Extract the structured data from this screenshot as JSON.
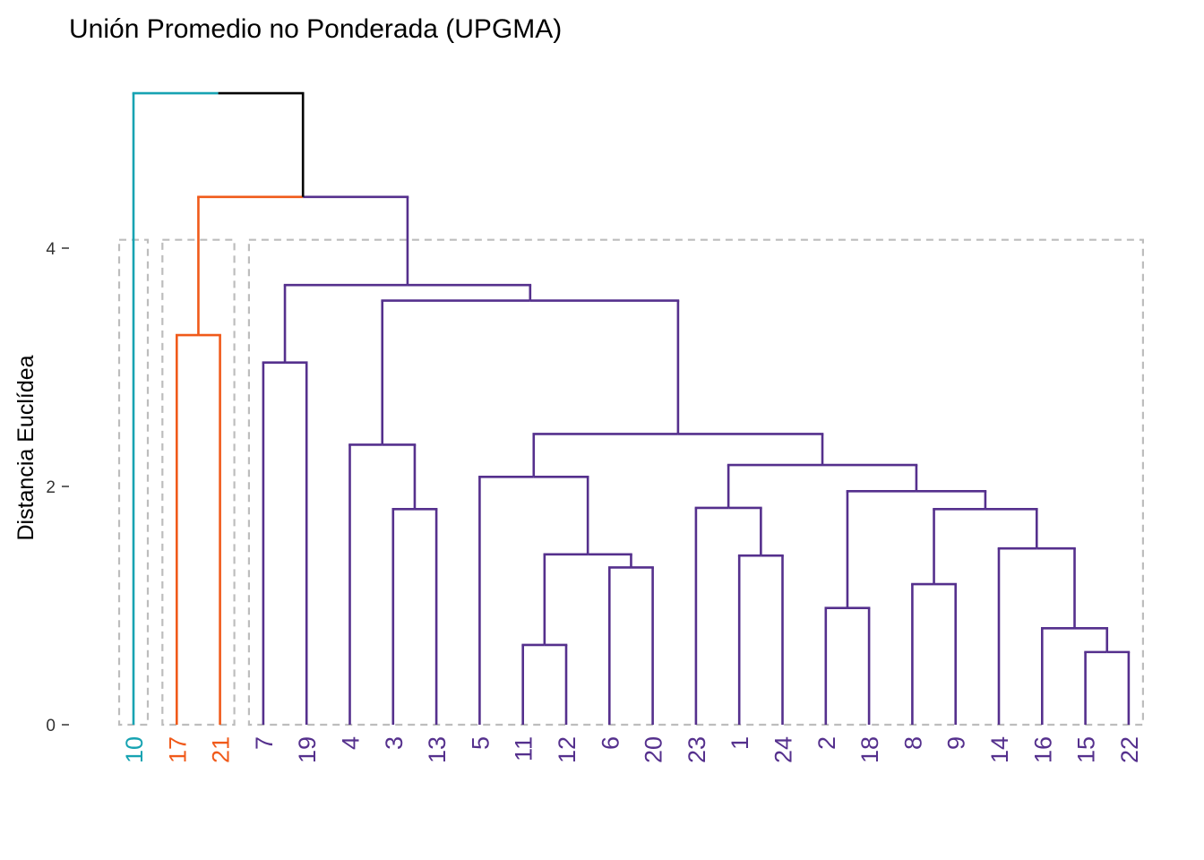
{
  "chart_data": {
    "type": "dendrogram",
    "title": "Unión Promedio no Ponderada (UPGMA)",
    "ylabel": "Distancia Euclídea",
    "xlabel": "",
    "ylim": [
      0,
      5.2
    ],
    "yticks": [
      0,
      2,
      4
    ],
    "grid": false,
    "clusters": [
      {
        "leaves": [
          "10"
        ],
        "color": "#17A3B2"
      },
      {
        "leaves": [
          "17",
          "21"
        ],
        "color": "#F05A1A"
      },
      {
        "leaves": [
          "7",
          "19",
          "4",
          "3",
          "13",
          "5",
          "11",
          "12",
          "6",
          "20",
          "23",
          "1",
          "24",
          "2",
          "18",
          "8",
          "9",
          "14",
          "16",
          "15",
          "22"
        ],
        "color": "#55308D"
      }
    ],
    "cut_height": 4.07,
    "leaf_order": [
      "10",
      "17",
      "21",
      "7",
      "19",
      "4",
      "3",
      "13",
      "5",
      "11",
      "12",
      "6",
      "20",
      "23",
      "1",
      "24",
      "2",
      "18",
      "8",
      "9",
      "14",
      "16",
      "15",
      "22"
    ],
    "merges": [
      {
        "left": "15",
        "right": "22",
        "height": 0.61
      },
      {
        "left": "11",
        "right": "12",
        "height": 0.67
      },
      {
        "left": "16",
        "right": [
          "15",
          "22"
        ],
        "height": 0.81
      },
      {
        "left": "2",
        "right": "18",
        "height": 0.98
      },
      {
        "left": "8",
        "right": "9",
        "height": 1.18
      },
      {
        "left": "6",
        "right": "20",
        "height": 1.32
      },
      {
        "left": "1",
        "right": "24",
        "height": 1.42
      },
      {
        "left": [
          "11",
          "12"
        ],
        "right": [
          "6",
          "20"
        ],
        "height": 1.43
      },
      {
        "left": "14",
        "right": [
          "16",
          "15",
          "22"
        ],
        "height": 1.48
      },
      {
        "left": "3",
        "right": "13",
        "height": 1.81
      },
      {
        "left": [
          "8",
          "9"
        ],
        "right": [
          "14",
          "16",
          "15",
          "22"
        ],
        "height": 1.81
      },
      {
        "left": "23",
        "right": [
          "1",
          "24"
        ],
        "height": 1.82
      },
      {
        "left": [
          "2",
          "18"
        ],
        "right": [
          "8",
          "9",
          "14",
          "16",
          "15",
          "22"
        ],
        "height": 1.96
      },
      {
        "left": "5",
        "right": [
          "11",
          "12",
          "6",
          "20"
        ],
        "height": 2.08
      },
      {
        "left": [
          "23",
          "1",
          "24"
        ],
        "right": [
          "2",
          "18",
          "8",
          "9",
          "14",
          "16",
          "15",
          "22"
        ],
        "height": 2.18
      },
      {
        "left": "4",
        "right": [
          "3",
          "13"
        ],
        "height": 2.35
      },
      {
        "left": [
          "5",
          "11",
          "12",
          "6",
          "20"
        ],
        "right": [
          "23",
          "1",
          "24",
          "2",
          "18",
          "8",
          "9",
          "14",
          "16",
          "15",
          "22"
        ],
        "height": 2.44
      },
      {
        "left": "7",
        "right": "19",
        "height": 3.04
      },
      {
        "left": "17",
        "right": "21",
        "height": 3.27
      },
      {
        "left": [
          "4",
          "3",
          "13"
        ],
        "right": [
          "5",
          "11",
          "12",
          "6",
          "20",
          "23",
          "1",
          "24",
          "2",
          "18",
          "8",
          "9",
          "14",
          "16",
          "15",
          "22"
        ],
        "height": 3.56
      },
      {
        "left": [
          "7",
          "19"
        ],
        "right": [
          "4",
          "3",
          "13",
          "5",
          "11",
          "12",
          "6",
          "20",
          "23",
          "1",
          "24",
          "2",
          "18",
          "8",
          "9",
          "14",
          "16",
          "15",
          "22"
        ],
        "height": 3.69
      },
      {
        "left": [
          "17",
          "21"
        ],
        "right": [
          "7",
          "19",
          "4",
          "3",
          "13",
          "5",
          "11",
          "12",
          "6",
          "20",
          "23",
          "1",
          "24",
          "2",
          "18",
          "8",
          "9",
          "14",
          "16",
          "15",
          "22"
        ],
        "height": 4.43
      },
      {
        "left": "10",
        "right": [
          "17",
          "21",
          "7",
          "19",
          "4",
          "3",
          "13",
          "5",
          "11",
          "12",
          "6",
          "20",
          "23",
          "1",
          "24",
          "2",
          "18",
          "8",
          "9",
          "14",
          "16",
          "15",
          "22"
        ],
        "height": 5.3
      }
    ]
  }
}
